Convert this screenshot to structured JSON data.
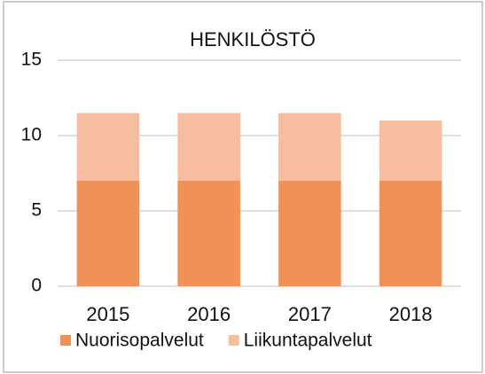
{
  "chart_data": {
    "type": "stacked_bar",
    "title": "HENKILÖSTÖ",
    "categories": [
      "2015",
      "2016",
      "2017",
      "2018"
    ],
    "series": [
      {
        "name": "Nuorisopalvelut",
        "color": "#f0915a",
        "values": [
          7,
          7,
          7,
          7
        ]
      },
      {
        "name": "Liikuntapalvelut",
        "color": "#f6bda1",
        "values": [
          4.5,
          4.5,
          4.5,
          4
        ]
      }
    ],
    "ylim": [
      0,
      15
    ],
    "yticks": [
      0,
      5,
      10,
      15
    ],
    "grid": true,
    "legend": "bottom"
  }
}
